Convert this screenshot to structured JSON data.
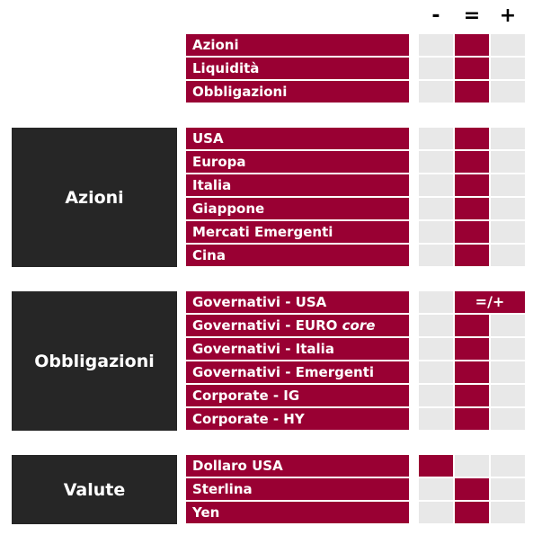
{
  "header": {
    "minus": "-",
    "equal": "=",
    "plus": "+"
  },
  "colors": {
    "label_bg": "#990033",
    "active_cell": "#990033",
    "inactive_cell": "#e8e8e8",
    "group_bg": "#262626"
  },
  "summary": {
    "rows": [
      {
        "label": "Azioni",
        "rating": "="
      },
      {
        "label": "Liquidità",
        "rating": "="
      },
      {
        "label": "Obbligazioni",
        "rating": "="
      }
    ]
  },
  "groups": [
    {
      "title": "Azioni",
      "rows": [
        {
          "label": "USA",
          "rating": "="
        },
        {
          "label": "Europa",
          "rating": "="
        },
        {
          "label": "Italia",
          "rating": "="
        },
        {
          "label": "Giappone",
          "rating": "="
        },
        {
          "label": "Mercati Emergenti",
          "rating": "="
        },
        {
          "label": "Cina",
          "rating": "="
        }
      ]
    },
    {
      "title": "Obbligazioni",
      "rows": [
        {
          "label": "Governativi - USA",
          "rating": "=/+",
          "badge": "=/+"
        },
        {
          "label_main": "Governativi - EURO ",
          "label_italic": "core",
          "rating": "="
        },
        {
          "label": "Governativi - Italia",
          "rating": "="
        },
        {
          "label": "Governativi - Emergenti",
          "rating": "="
        },
        {
          "label": "Corporate - IG",
          "rating": "="
        },
        {
          "label": "Corporate - HY",
          "rating": "="
        }
      ]
    },
    {
      "title": "Valute",
      "rows": [
        {
          "label": "Dollaro USA",
          "rating": "-"
        },
        {
          "label": "Sterlina",
          "rating": "="
        },
        {
          "label": "Yen",
          "rating": "="
        }
      ]
    }
  ]
}
